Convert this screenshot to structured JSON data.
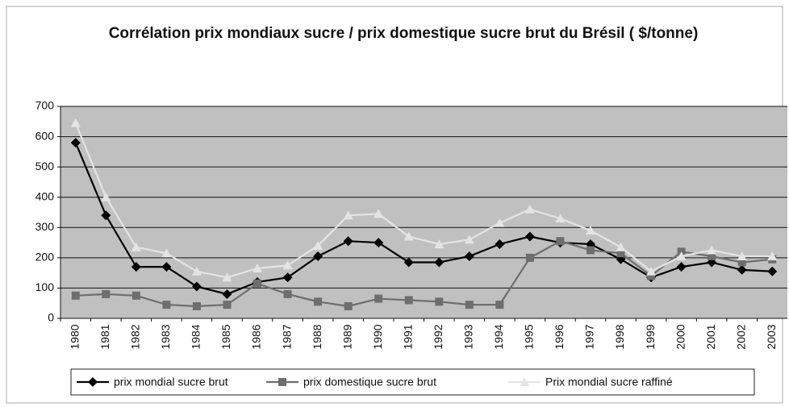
{
  "chart_data": {
    "type": "line",
    "title": "Corrélation prix mondiaux sucre / prix domestique sucre brut du Brésil ( $/tonne)",
    "categories": [
      "1980",
      "1981",
      "1982",
      "1983",
      "1984",
      "1985",
      "1986",
      "1987",
      "1988",
      "1989",
      "1990",
      "1991",
      "1992",
      "1993",
      "1994",
      "1995",
      "1996",
      "1997",
      "1998",
      "1999",
      "2000",
      "2001",
      "2002",
      "2003"
    ],
    "series": [
      {
        "name": "prix mondial sucre brut",
        "color": "#000000",
        "marker": "diamond",
        "values": [
          580,
          340,
          170,
          170,
          105,
          80,
          120,
          135,
          205,
          255,
          250,
          185,
          185,
          205,
          245,
          270,
          250,
          245,
          195,
          135,
          170,
          185,
          160,
          155
        ]
      },
      {
        "name": "prix domestique sucre brut",
        "color": "#6e6e6e",
        "marker": "square",
        "values": [
          75,
          80,
          75,
          45,
          40,
          45,
          115,
          80,
          55,
          40,
          65,
          60,
          55,
          45,
          45,
          200,
          255,
          225,
          215,
          140,
          220,
          205,
          185,
          195
        ]
      },
      {
        "name": "Prix mondial sucre raffiné",
        "color": "#e4e4e4",
        "marker": "triangle",
        "values": [
          645,
          400,
          235,
          215,
          155,
          135,
          165,
          175,
          240,
          340,
          345,
          270,
          245,
          260,
          315,
          360,
          330,
          290,
          235,
          155,
          205,
          225,
          205,
          205
        ]
      }
    ],
    "ylim": [
      0,
      700
    ],
    "yticks": [
      0,
      100,
      200,
      300,
      400,
      500,
      600,
      700
    ],
    "grid": true,
    "legend": "bottom"
  }
}
